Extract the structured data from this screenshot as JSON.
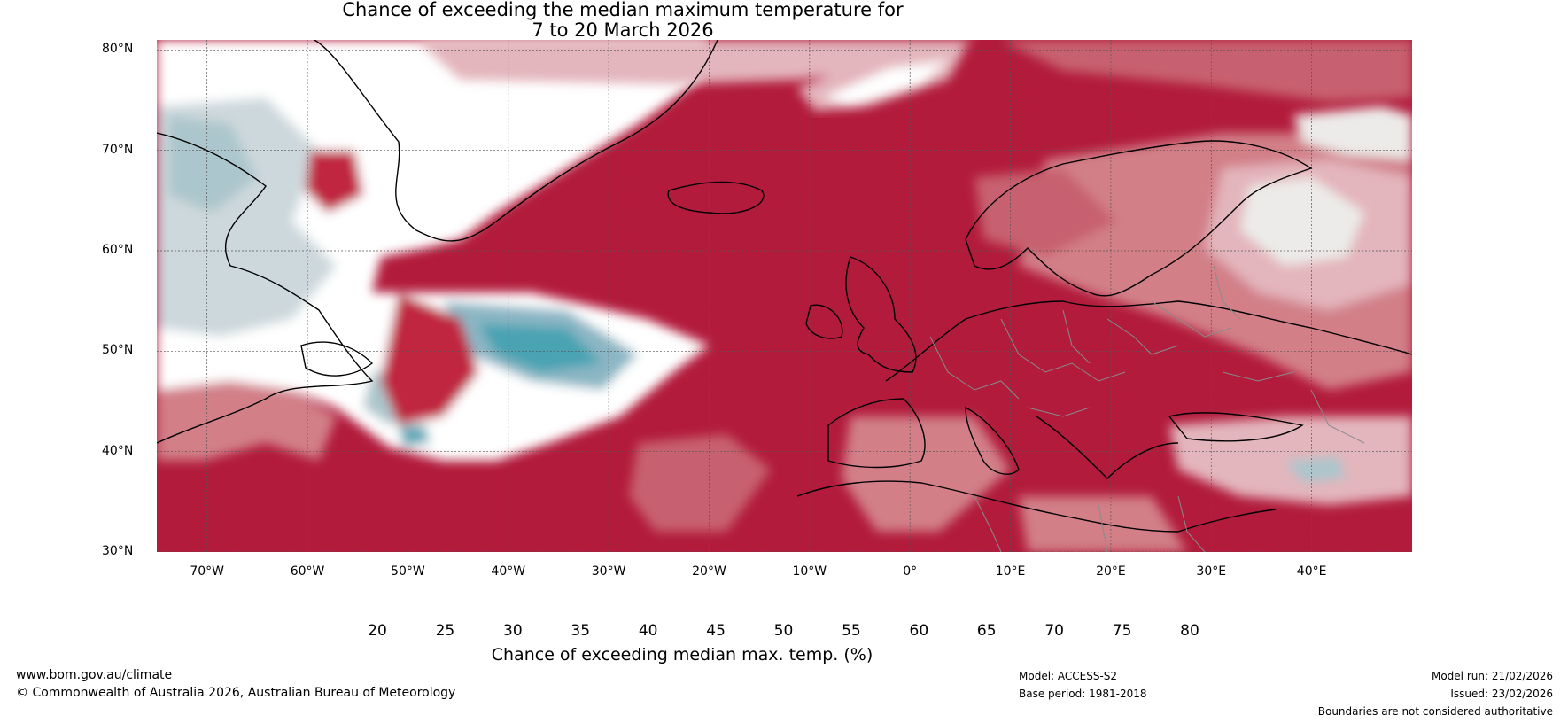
{
  "title": {
    "line1": "Chance of exceeding the median maximum temperature for",
    "line2": "7 to 20 March 2026"
  },
  "map": {
    "lat_labels": [
      "80°N",
      "70°N",
      "60°N",
      "50°N",
      "40°N",
      "30°N"
    ],
    "lon_labels": [
      "70°W",
      "60°W",
      "50°W",
      "40°W",
      "30°W",
      "20°W",
      "10°W",
      "0°",
      "10°E",
      "20°E",
      "30°E",
      "40°E"
    ],
    "lat_range": [
      30,
      81
    ],
    "lon_range": [
      -75,
      50
    ]
  },
  "colorbar": {
    "ticks": [
      "20",
      "25",
      "30",
      "35",
      "40",
      "45",
      "50",
      "55",
      "60",
      "65",
      "70",
      "75",
      "80"
    ],
    "colors": [
      "#64a9b8",
      "#8bb6c4",
      "#abc6cc",
      "#cdd8dc",
      "#ebf1f3",
      "#ffffff",
      "#ffffff",
      "#ecebe9",
      "#e3b5bc",
      "#d27f88",
      "#c76170",
      "#bf3f53"
    ],
    "under_color": "#4aa3b3",
    "over_color": "#b21b3c",
    "label": "Chance of exceeding median max. temp. (%)"
  },
  "footer": {
    "url": "www.bom.gov.au/climate",
    "copyright": "© Commonwealth of Australia 2026, Australian Bureau of Meteorology",
    "model": "Model: ACCESS-S2",
    "base_period": "Base period: 1981-2018",
    "model_run": "Model run: 21/02/2026",
    "issued": "Issued: 23/02/2026",
    "disclaimer": "Boundaries are not considered authoritative"
  }
}
